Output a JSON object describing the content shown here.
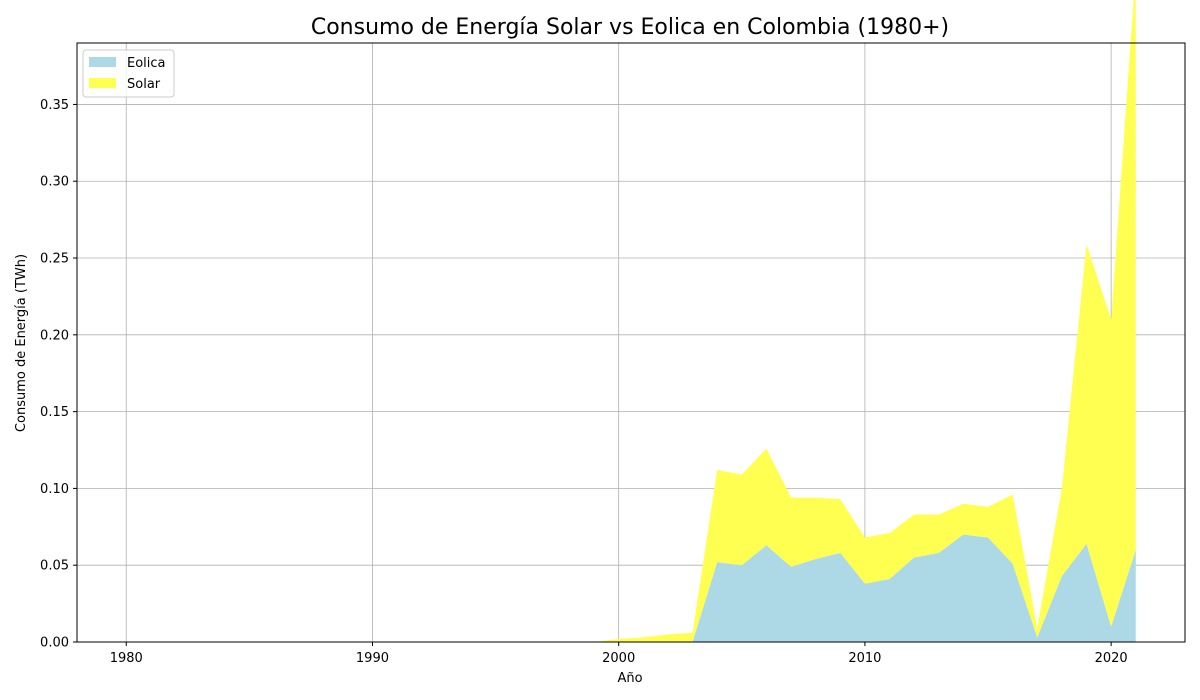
{
  "chart_data": {
    "type": "area",
    "title": "Consumo de Energía Solar vs Eolica en Colombia (1980+)",
    "xlabel": "Año",
    "ylabel": "Consumo de Energía (TWh)",
    "xlim": [
      1978,
      2023
    ],
    "ylim": [
      0,
      0.39
    ],
    "xticks": [
      1980,
      1990,
      2000,
      2010,
      2020
    ],
    "yticks": [
      0.0,
      0.05,
      0.1,
      0.15,
      0.2,
      0.25,
      0.3,
      0.35
    ],
    "grid": true,
    "legend_position": "top-left",
    "x": [
      1980,
      1981,
      1982,
      1983,
      1984,
      1985,
      1986,
      1987,
      1988,
      1989,
      1990,
      1991,
      1992,
      1993,
      1994,
      1995,
      1996,
      1997,
      1998,
      1999,
      2000,
      2001,
      2002,
      2003,
      2004,
      2005,
      2006,
      2007,
      2008,
      2009,
      2010,
      2011,
      2012,
      2013,
      2014,
      2015,
      2016,
      2017,
      2018,
      2019,
      2020,
      2021
    ],
    "series": [
      {
        "name": "Eolica",
        "color": "#add8e6",
        "values": [
          0,
          0,
          0,
          0,
          0,
          0,
          0,
          0,
          0,
          0,
          0,
          0,
          0,
          0,
          0,
          0,
          0,
          0,
          0,
          0,
          0,
          0,
          0,
          0,
          0.052,
          0.05,
          0.063,
          0.049,
          0.054,
          0.058,
          0.038,
          0.041,
          0.055,
          0.058,
          0.07,
          0.068,
          0.051,
          0.003,
          0.043,
          0.064,
          0.01,
          0.06
        ]
      },
      {
        "name": "Solar",
        "color": "#ffff52",
        "values": [
          0,
          0,
          0,
          0,
          0,
          0,
          0,
          0,
          0,
          0,
          0,
          0,
          0,
          0,
          0,
          0,
          0,
          0,
          0,
          0,
          0.002,
          0.003,
          0.005,
          0.006,
          0.06,
          0.059,
          0.063,
          0.045,
          0.04,
          0.035,
          0.03,
          0.03,
          0.028,
          0.025,
          0.02,
          0.02,
          0.045,
          0.006,
          0.057,
          0.195,
          0.2,
          0.378
        ]
      }
    ]
  }
}
